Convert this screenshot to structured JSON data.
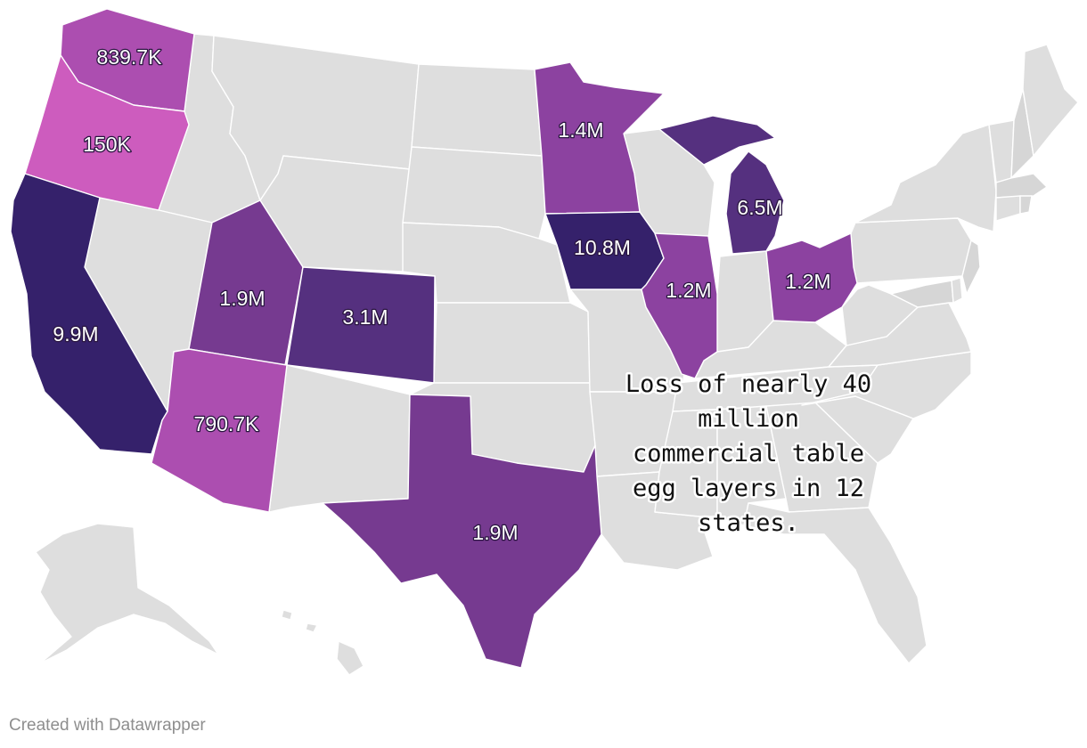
{
  "map": {
    "annotation_lines": [
      "Loss of nearly 40",
      "million",
      "commercial table",
      "egg layers in 12",
      "states."
    ],
    "credit": "Created with Datawrapper",
    "colors": {
      "no_data": "#dedede",
      "darkest": "#35216b",
      "dark": "#55307f",
      "medium": "#763a90",
      "medium_light": "#8c42a0",
      "light": "#ac4eb0",
      "lightest": "#cd5cbe"
    },
    "states": [
      {
        "name": "Washington",
        "label": "839.7K",
        "color": "#ac4eb0"
      },
      {
        "name": "Oregon",
        "label": "150K",
        "color": "#cd5cbe"
      },
      {
        "name": "California",
        "label": "9.9M",
        "color": "#35216b"
      },
      {
        "name": "Utah",
        "label": "1.9M",
        "color": "#763a90"
      },
      {
        "name": "Colorado",
        "label": "3.1M",
        "color": "#55307f"
      },
      {
        "name": "Arizona",
        "label": "790.7K",
        "color": "#ac4eb0"
      },
      {
        "name": "Texas",
        "label": "1.9M",
        "color": "#763a90"
      },
      {
        "name": "Minnesota",
        "label": "1.4M",
        "color": "#8c42a0"
      },
      {
        "name": "Iowa",
        "label": "10.8M",
        "color": "#35216b"
      },
      {
        "name": "Illinois",
        "label": "1.2M",
        "color": "#8c42a0"
      },
      {
        "name": "Michigan",
        "label": "6.5M",
        "color": "#55307f"
      },
      {
        "name": "Ohio",
        "label": "1.2M",
        "color": "#8c42a0"
      }
    ]
  }
}
